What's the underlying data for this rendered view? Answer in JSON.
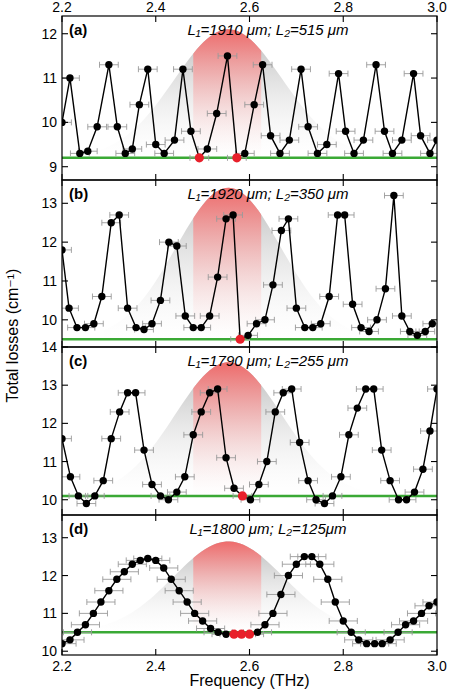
{
  "chart_data": [
    {
      "type": "line",
      "title": "(a)",
      "subtitle": "L₁=1910 μm; L₂=515 μm",
      "ylabel": "Total losses (cm⁻¹)",
      "xlim": [
        2.2,
        3.0
      ],
      "xticks": [
        2.2,
        2.4,
        2.6,
        2.8,
        {
          "value": 3,
          "label": "3.0"
        }
      ],
      "ylim": [
        8.7,
        12.4
      ],
      "yticks": [
        9,
        10,
        11,
        12
      ],
      "x": [
        2.2,
        2.217,
        2.238,
        2.255,
        2.275,
        2.3,
        2.318,
        2.335,
        2.35,
        2.365,
        2.383,
        2.4,
        2.418,
        2.44,
        2.458,
        2.475,
        2.493,
        2.51,
        2.53,
        2.553,
        2.573,
        2.59,
        2.61,
        2.628,
        2.645,
        2.665,
        2.685,
        2.71,
        2.725,
        2.745,
        2.765,
        2.79,
        2.805,
        2.823,
        2.843,
        2.87,
        2.888,
        2.905,
        2.925,
        2.95,
        2.965,
        2.985,
        3.0
      ],
      "series": [
        {
          "color": "#000000",
          "marker": "circle",
          "line_style": "solid",
          "x_error": 0.02,
          "values": [
            10.0,
            11.0,
            9.3,
            9.35,
            9.9,
            11.3,
            9.9,
            9.3,
            9.4,
            10.4,
            11.2,
            9.5,
            9.3,
            9.6,
            11.2,
            9.8,
            9.2,
            9.4,
            10.2,
            11.5,
            9.2,
            9.3,
            10.4,
            11.3,
            9.7,
            9.3,
            9.6,
            11.2,
            9.9,
            9.3,
            9.5,
            11.1,
            9.8,
            9.3,
            9.6,
            11.3,
            9.8,
            9.3,
            9.6,
            11.1,
            9.7,
            9.3,
            9.6
          ]
        },
        {
          "color": "#e8202a",
          "marker": "circle",
          "line_style": "none",
          "x": [
            2.493,
            2.573
          ],
          "values": [
            9.2,
            9.2
          ]
        }
      ],
      "reference_line": {
        "value": 9.2,
        "color": "#3aa935"
      },
      "gain_curve": {
        "start": 2.27,
        "end": 2.85,
        "peak_x": 2.555,
        "peak_y": 12.1,
        "highlight": [
          2.48,
          2.625
        ]
      }
    },
    {
      "type": "line",
      "title": "(b)",
      "subtitle": "L₁=1920 μm; L₂=350 μm",
      "tick_labels": "y",
      "xlim": [
        2.2,
        3.0
      ],
      "xticks": [
        2.2,
        2.4,
        2.6,
        2.8,
        {
          "value": 3,
          "label": "3.0"
        }
      ],
      "ylim": [
        9.3,
        13.6
      ],
      "yticks": [
        10,
        11,
        12,
        13
      ],
      "x": [
        2.2,
        2.215,
        2.232,
        2.25,
        2.268,
        2.285,
        2.305,
        2.322,
        2.34,
        2.358,
        2.375,
        2.392,
        2.41,
        2.428,
        2.445,
        2.463,
        2.48,
        2.497,
        2.515,
        2.532,
        2.55,
        2.565,
        2.58,
        2.597,
        2.615,
        2.633,
        2.65,
        2.668,
        2.683,
        2.7,
        2.718,
        2.735,
        2.752,
        2.77,
        2.788,
        2.803,
        2.82,
        2.838,
        2.855,
        2.872,
        2.89,
        2.908,
        2.925,
        2.942,
        2.958,
        2.975,
        2.99
      ],
      "series": [
        {
          "color": "#000000",
          "marker": "circle",
          "line_style": "solid",
          "x_error": 0.02,
          "values": [
            11.8,
            10.3,
            9.8,
            9.8,
            9.9,
            10.6,
            12.5,
            12.7,
            10.3,
            9.8,
            9.75,
            9.9,
            10.5,
            12.0,
            11.9,
            10.1,
            9.8,
            9.8,
            10.1,
            11.1,
            12.6,
            12.7,
            9.5,
            9.6,
            9.9,
            10.0,
            10.9,
            12.3,
            12.6,
            10.3,
            9.8,
            9.8,
            9.9,
            10.6,
            12.7,
            12.7,
            10.4,
            9.8,
            9.7,
            10.0,
            10.8,
            13.2,
            10.1,
            9.7,
            9.6,
            9.7,
            9.9
          ]
        },
        {
          "color": "#e8202a",
          "marker": "circle",
          "line_style": "none",
          "x": [
            2.58
          ],
          "values": [
            9.5
          ]
        }
      ],
      "reference_line": {
        "value": 9.5,
        "color": "#3aa935"
      },
      "gain_curve": {
        "start": 2.29,
        "end": 2.85,
        "peak_x": 2.555,
        "peak_y": 13.4,
        "highlight": [
          2.48,
          2.625
        ]
      }
    },
    {
      "type": "line",
      "title": "(c)",
      "subtitle": "L₁=1790 μm; L₂=255 μm",
      "tick_labels": "y",
      "xlim": [
        2.2,
        3.0
      ],
      "xticks": [
        2.2,
        2.4,
        2.6,
        2.8,
        {
          "value": 3,
          "label": "3.0"
        }
      ],
      "ylim": [
        9.6,
        14.0
      ],
      "yticks": [
        10,
        11,
        12,
        13,
        14
      ],
      "x": [
        2.2,
        2.218,
        2.235,
        2.252,
        2.27,
        2.288,
        2.305,
        2.323,
        2.34,
        2.357,
        2.375,
        2.392,
        2.41,
        2.427,
        2.445,
        2.462,
        2.48,
        2.497,
        2.515,
        2.532,
        2.55,
        2.567,
        2.585,
        2.602,
        2.62,
        2.637,
        2.655,
        2.672,
        2.69,
        2.707,
        2.725,
        2.742,
        2.76,
        2.777,
        2.795,
        2.812,
        2.83,
        2.848,
        2.865,
        2.882,
        2.9,
        2.918,
        2.935,
        2.952,
        2.97,
        2.985,
        3.0
      ],
      "series": [
        {
          "color": "#000000",
          "marker": "circle",
          "line_style": "solid",
          "x_error": 0.02,
          "values": [
            11.6,
            10.6,
            10.1,
            9.9,
            10.1,
            10.5,
            11.6,
            12.3,
            12.8,
            12.8,
            11.3,
            10.4,
            10.1,
            10.0,
            10.2,
            10.6,
            11.7,
            12.3,
            12.8,
            12.9,
            11.1,
            10.3,
            10.1,
            10.0,
            10.4,
            11.0,
            12.3,
            12.8,
            12.9,
            11.5,
            10.5,
            10.0,
            9.9,
            10.1,
            10.6,
            11.7,
            12.4,
            12.9,
            12.9,
            11.3,
            10.5,
            10.0,
            10.0,
            10.2,
            10.8,
            11.8,
            12.9
          ]
        },
        {
          "color": "#e8202a",
          "marker": "circle",
          "line_style": "none",
          "x": [
            2.585
          ],
          "values": [
            10.1
          ]
        }
      ],
      "reference_line": {
        "value": 10.1,
        "color": "#3aa935"
      },
      "gain_curve": {
        "start": 2.28,
        "end": 2.85,
        "peak_x": 2.555,
        "peak_y": 13.6,
        "highlight": [
          2.48,
          2.625
        ]
      }
    },
    {
      "type": "line",
      "title": "(d)",
      "subtitle": "L₁=1800 μm; L₂=125μm",
      "xlabel": "Frequency (THz)",
      "xlim": [
        2.2,
        3.0
      ],
      "xticks": [
        2.2,
        2.4,
        2.6,
        2.8,
        {
          "value": 3,
          "label": "3.0"
        }
      ],
      "ylim": [
        9.9,
        13.6
      ],
      "yticks": [
        10,
        11,
        12,
        13
      ],
      "x": [
        2.2,
        2.217,
        2.233,
        2.25,
        2.267,
        2.283,
        2.3,
        2.317,
        2.333,
        2.35,
        2.367,
        2.383,
        2.4,
        2.417,
        2.433,
        2.45,
        2.467,
        2.483,
        2.5,
        2.517,
        2.533,
        2.55,
        2.567,
        2.583,
        2.6,
        2.617,
        2.633,
        2.65,
        2.667,
        2.683,
        2.7,
        2.717,
        2.733,
        2.75,
        2.767,
        2.783,
        2.8,
        2.817,
        2.833,
        2.85,
        2.867,
        2.883,
        2.9,
        2.917,
        2.933,
        2.95,
        2.967,
        2.983,
        3.0
      ],
      "series": [
        {
          "color": "#000000",
          "marker": "circle",
          "line_style": "solid",
          "x_error": 0.03,
          "values": [
            10.2,
            10.3,
            10.5,
            10.7,
            11.0,
            11.3,
            11.6,
            11.9,
            12.1,
            12.3,
            12.4,
            12.45,
            12.4,
            12.2,
            11.9,
            11.6,
            11.3,
            11.0,
            10.8,
            10.6,
            10.5,
            10.45,
            10.45,
            10.45,
            10.45,
            10.5,
            10.7,
            11.0,
            11.5,
            12.0,
            12.3,
            12.5,
            12.5,
            12.3,
            11.9,
            11.3,
            10.8,
            10.5,
            10.3,
            10.2,
            10.2,
            10.2,
            10.3,
            10.5,
            10.7,
            10.8,
            11.0,
            11.2,
            11.3
          ]
        },
        {
          "color": "#e8202a",
          "marker": "circle",
          "line_style": "none",
          "x": [
            2.567,
            2.583,
            2.6
          ],
          "values": [
            10.45,
            10.45,
            10.45
          ]
        }
      ],
      "reference_line": {
        "value": 10.5,
        "color": "#3aa935"
      },
      "gain_curve": {
        "start": 2.27,
        "end": 2.86,
        "peak_x": 2.555,
        "peak_y": 12.9,
        "highlight": [
          2.48,
          2.625
        ]
      }
    }
  ]
}
